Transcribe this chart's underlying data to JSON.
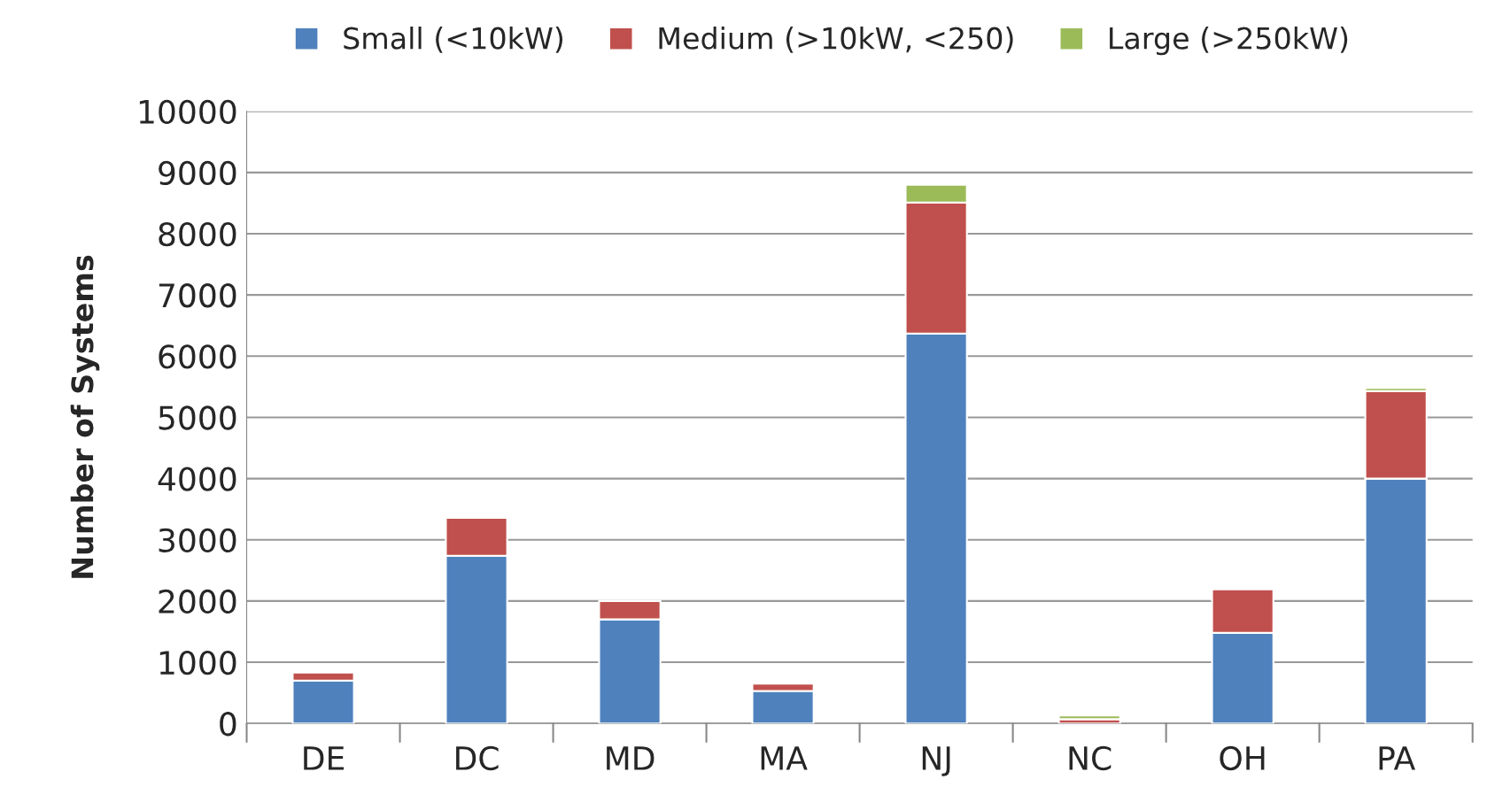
{
  "chart_data": {
    "type": "bar",
    "stacked": true,
    "ylabel": "Number of Systems",
    "categories": [
      "DE",
      "DC",
      "MD",
      "MA",
      "NJ",
      "NC",
      "OH",
      "PA"
    ],
    "series": [
      {
        "name": "Small (<10kW)",
        "color": "#4f81bd",
        "values": [
          700,
          2740,
          1700,
          530,
          6370,
          null,
          1480,
          4000
        ]
      },
      {
        "name": "Medium (>10kW, <250)",
        "color": "#c0504d",
        "values": [
          130,
          620,
          300,
          120,
          2140,
          70,
          710,
          1430
        ]
      },
      {
        "name": "Large (>250kW)",
        "color": "#9bbb59",
        "values": [
          null,
          null,
          null,
          null,
          290,
          60,
          null,
          50
        ]
      }
    ],
    "ylim": [
      0,
      10000
    ],
    "yticks": [
      0,
      1000,
      2000,
      3000,
      4000,
      5000,
      6000,
      7000,
      8000,
      9000,
      10000
    ],
    "grid": "y",
    "legend": "top"
  }
}
